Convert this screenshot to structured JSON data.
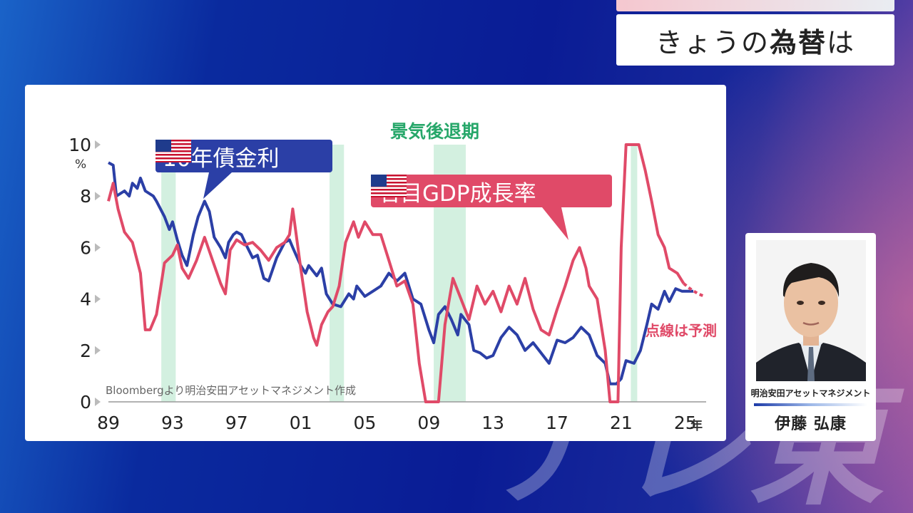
{
  "title": {
    "prefix": "きょうの",
    "highlight": "為替",
    "suffix": "は"
  },
  "chart": {
    "source": "Bloombergより明治安田アセットマネジメント作成",
    "recession_label": "景気後退期",
    "forecast_label": "点線は予測",
    "unit": "%",
    "year_suffix": "年",
    "flag_icon": "us-flag-icon"
  },
  "person": {
    "company": "明治安田アセットマネジメント",
    "name": "伊藤 弘康"
  },
  "watermark": "テレ東",
  "chart_data": {
    "type": "line",
    "xlim": [
      1989,
      2026.3
    ],
    "ylim": [
      0,
      10
    ],
    "yticks": [
      "0",
      "2",
      "4",
      "6",
      "8",
      "10"
    ],
    "xticks": [
      {
        "x": 1989,
        "label": "89"
      },
      {
        "x": 1993,
        "label": "93"
      },
      {
        "x": 1997,
        "label": "97"
      },
      {
        "x": 2001,
        "label": "01"
      },
      {
        "x": 2005,
        "label": "05"
      },
      {
        "x": 2009,
        "label": "09"
      },
      {
        "x": 2013,
        "label": "13"
      },
      {
        "x": 2017,
        "label": "17"
      },
      {
        "x": 2021,
        "label": "21"
      },
      {
        "x": 2025,
        "label": "25"
      }
    ],
    "recessions": [
      [
        1992.3,
        1993.2
      ],
      [
        2002.8,
        2003.7
      ],
      [
        2009.3,
        2011.3
      ],
      [
        2021.6,
        2022.0
      ]
    ],
    "series": [
      {
        "name": "10年債金利",
        "color": "#2b3fa6",
        "points": [
          [
            1989,
            9.3
          ],
          [
            1989.3,
            9.2
          ],
          [
            1989.5,
            8.0
          ],
          [
            1990,
            8.2
          ],
          [
            1990.3,
            8.0
          ],
          [
            1990.5,
            8.5
          ],
          [
            1990.8,
            8.3
          ],
          [
            1991,
            8.7
          ],
          [
            1991.3,
            8.2
          ],
          [
            1991.8,
            8.0
          ],
          [
            1992,
            7.8
          ],
          [
            1992.5,
            7.2
          ],
          [
            1992.8,
            6.7
          ],
          [
            1993,
            7.0
          ],
          [
            1993.3,
            6.3
          ],
          [
            1993.6,
            5.7
          ],
          [
            1993.9,
            5.3
          ],
          [
            1994.3,
            6.5
          ],
          [
            1994.6,
            7.2
          ],
          [
            1995,
            7.8
          ],
          [
            1995.3,
            7.4
          ],
          [
            1995.6,
            6.4
          ],
          [
            1996,
            6.0
          ],
          [
            1996.3,
            5.6
          ],
          [
            1996.5,
            6.2
          ],
          [
            1996.8,
            6.5
          ],
          [
            1997,
            6.6
          ],
          [
            1997.3,
            6.5
          ],
          [
            1997.6,
            6.1
          ],
          [
            1998,
            5.6
          ],
          [
            1998.3,
            5.7
          ],
          [
            1998.7,
            4.8
          ],
          [
            1999,
            4.7
          ],
          [
            1999.5,
            5.6
          ],
          [
            2000,
            6.2
          ],
          [
            2000.3,
            6.3
          ],
          [
            2000.5,
            6.0
          ],
          [
            2001,
            5.3
          ],
          [
            2001.3,
            5.0
          ],
          [
            2001.5,
            5.3
          ],
          [
            2002,
            4.9
          ],
          [
            2002.3,
            5.2
          ],
          [
            2002.6,
            4.2
          ],
          [
            2003,
            3.8
          ],
          [
            2003.5,
            3.7
          ],
          [
            2004,
            4.2
          ],
          [
            2004.3,
            4.0
          ],
          [
            2004.5,
            4.5
          ],
          [
            2005,
            4.1
          ],
          [
            2005.5,
            4.3
          ],
          [
            2006,
            4.5
          ],
          [
            2006.5,
            5.0
          ],
          [
            2007,
            4.7
          ],
          [
            2007.5,
            5.0
          ],
          [
            2008,
            4.0
          ],
          [
            2008.5,
            3.8
          ],
          [
            2009,
            2.8
          ],
          [
            2009.3,
            2.3
          ],
          [
            2009.6,
            3.4
          ],
          [
            2010,
            3.7
          ],
          [
            2010.4,
            3.2
          ],
          [
            2010.8,
            2.6
          ],
          [
            2011,
            3.4
          ],
          [
            2011.5,
            3.0
          ],
          [
            2011.8,
            2.0
          ],
          [
            2012.2,
            1.9
          ],
          [
            2012.6,
            1.7
          ],
          [
            2013,
            1.8
          ],
          [
            2013.5,
            2.5
          ],
          [
            2014,
            2.9
          ],
          [
            2014.5,
            2.6
          ],
          [
            2015,
            2.0
          ],
          [
            2015.5,
            2.3
          ],
          [
            2016,
            1.9
          ],
          [
            2016.5,
            1.5
          ],
          [
            2017,
            2.4
          ],
          [
            2017.5,
            2.3
          ],
          [
            2018,
            2.5
          ],
          [
            2018.5,
            2.9
          ],
          [
            2019,
            2.6
          ],
          [
            2019.5,
            1.8
          ],
          [
            2020,
            1.5
          ],
          [
            2020.3,
            0.7
          ],
          [
            2020.7,
            0.7
          ],
          [
            2021,
            0.9
          ],
          [
            2021.3,
            1.6
          ],
          [
            2021.8,
            1.5
          ],
          [
            2022.2,
            2.0
          ],
          [
            2022.6,
            3.0
          ],
          [
            2022.9,
            3.8
          ],
          [
            2023.3,
            3.6
          ],
          [
            2023.7,
            4.3
          ],
          [
            2024,
            3.9
          ],
          [
            2024.4,
            4.4
          ],
          [
            2024.8,
            4.3
          ],
          [
            2025.0,
            4.3
          ],
          [
            2025.5,
            4.3
          ]
        ]
      },
      {
        "name": "名目GDP成長率",
        "color": "#e04a68",
        "points": [
          [
            1989,
            7.8
          ],
          [
            1989.3,
            8.5
          ],
          [
            1989.6,
            7.5
          ],
          [
            1990,
            6.6
          ],
          [
            1990.5,
            6.2
          ],
          [
            1991,
            5.0
          ],
          [
            1991.3,
            2.8
          ],
          [
            1991.6,
            2.8
          ],
          [
            1992,
            3.4
          ],
          [
            1992.5,
            5.4
          ],
          [
            1993,
            5.7
          ],
          [
            1993.3,
            6.1
          ],
          [
            1993.6,
            5.2
          ],
          [
            1994,
            4.8
          ],
          [
            1994.5,
            5.5
          ],
          [
            1995,
            6.4
          ],
          [
            1995.5,
            5.5
          ],
          [
            1996,
            4.6
          ],
          [
            1996.3,
            4.2
          ],
          [
            1996.6,
            5.9
          ],
          [
            1997,
            6.3
          ],
          [
            1997.5,
            6.1
          ],
          [
            1998,
            6.2
          ],
          [
            1998.5,
            5.9
          ],
          [
            1999,
            5.5
          ],
          [
            1999.5,
            6.0
          ],
          [
            2000,
            6.2
          ],
          [
            2000.3,
            6.5
          ],
          [
            2000.5,
            7.5
          ],
          [
            2001,
            5.2
          ],
          [
            2001.4,
            3.5
          ],
          [
            2001.8,
            2.5
          ],
          [
            2002,
            2.2
          ],
          [
            2002.3,
            3.0
          ],
          [
            2002.7,
            3.5
          ],
          [
            2003,
            3.7
          ],
          [
            2003.4,
            4.5
          ],
          [
            2003.8,
            6.2
          ],
          [
            2004.3,
            7.0
          ],
          [
            2004.6,
            6.4
          ],
          [
            2005,
            7.0
          ],
          [
            2005.5,
            6.5
          ],
          [
            2006,
            6.5
          ],
          [
            2006.5,
            5.5
          ],
          [
            2007,
            4.5
          ],
          [
            2007.5,
            4.7
          ],
          [
            2008,
            3.8
          ],
          [
            2008.4,
            1.5
          ],
          [
            2008.8,
            -0.5
          ],
          [
            2009.2,
            -2.0
          ],
          [
            2009.6,
            -0.5
          ],
          [
            2010,
            3.0
          ],
          [
            2010.5,
            4.8
          ],
          [
            2011,
            4.0
          ],
          [
            2011.5,
            3.2
          ],
          [
            2012,
            4.5
          ],
          [
            2012.5,
            3.8
          ],
          [
            2013,
            4.3
          ],
          [
            2013.5,
            3.5
          ],
          [
            2014,
            4.5
          ],
          [
            2014.5,
            3.8
          ],
          [
            2015,
            4.8
          ],
          [
            2015.5,
            3.6
          ],
          [
            2016,
            2.8
          ],
          [
            2016.5,
            2.6
          ],
          [
            2017,
            3.6
          ],
          [
            2017.5,
            4.5
          ],
          [
            2018,
            5.5
          ],
          [
            2018.4,
            6.0
          ],
          [
            2018.8,
            5.2
          ],
          [
            2019,
            4.5
          ],
          [
            2019.5,
            4.0
          ],
          [
            2020,
            2.0
          ],
          [
            2020.3,
            -8.0
          ],
          [
            2020.8,
            -4.0
          ],
          [
            2021,
            6.0
          ],
          [
            2021.3,
            12.0
          ],
          [
            2021.7,
            11.0
          ],
          [
            2022.1,
            10.0
          ],
          [
            2022.5,
            9.0
          ],
          [
            2022.9,
            7.8
          ],
          [
            2023.3,
            6.5
          ],
          [
            2023.7,
            6.0
          ],
          [
            2024,
            5.2
          ],
          [
            2024.5,
            5.0
          ],
          [
            2024.9,
            4.6
          ]
        ],
        "forecast": [
          [
            2024.9,
            4.6
          ],
          [
            2025.3,
            4.4
          ],
          [
            2025.8,
            4.2
          ],
          [
            2026.2,
            4.1
          ]
        ]
      }
    ]
  }
}
